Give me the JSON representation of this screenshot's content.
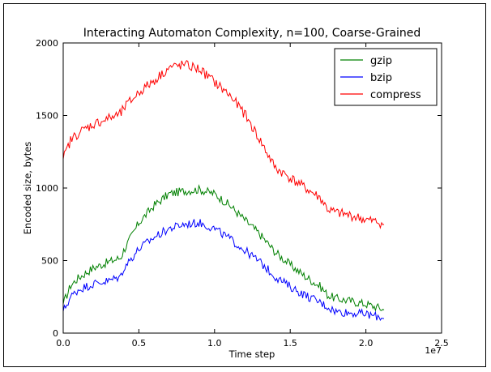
{
  "chart_data": {
    "type": "line",
    "title": "Interacting Automaton Complexity, n=100, Coarse-Grained",
    "xlabel": "Time step",
    "ylabel": "Encoded size, bytes",
    "x_offset_label": "1e7",
    "xlim": [
      0.0,
      2.5
    ],
    "ylim": [
      0,
      2000
    ],
    "x_ticks": [
      "0.0",
      "0.5",
      "1.0",
      "1.5",
      "2.0",
      "2.5"
    ],
    "y_ticks": [
      "0",
      "500",
      "1000",
      "1500",
      "2000"
    ],
    "grid": false,
    "legend_position": "top-right",
    "x": [
      0.0,
      0.05,
      0.1,
      0.2,
      0.3,
      0.38,
      0.4,
      0.5,
      0.6,
      0.7,
      0.8,
      0.9,
      1.0,
      1.1,
      1.2,
      1.3,
      1.4,
      1.5,
      1.6,
      1.7,
      1.75,
      1.8,
      1.9,
      2.0,
      2.1,
      2.12
    ],
    "series": [
      {
        "name": "gzip",
        "color": "#008000",
        "values": [
          200,
          330,
          380,
          450,
          490,
          520,
          570,
          760,
          880,
          960,
          980,
          990,
          960,
          880,
          780,
          680,
          560,
          470,
          390,
          320,
          260,
          240,
          220,
          200,
          170,
          160
        ]
      },
      {
        "name": "bzip",
        "color": "#0000ff",
        "values": [
          150,
          250,
          300,
          340,
          360,
          390,
          450,
          580,
          660,
          720,
          750,
          760,
          720,
          650,
          570,
          490,
          390,
          320,
          260,
          210,
          180,
          150,
          140,
          130,
          110,
          100
        ]
      },
      {
        "name": "compress",
        "color": "#ff0000",
        "values": [
          1200,
          1330,
          1380,
          1440,
          1480,
          1510,
          1550,
          1660,
          1740,
          1830,
          1850,
          1820,
          1730,
          1640,
          1510,
          1330,
          1140,
          1070,
          1000,
          930,
          850,
          830,
          810,
          780,
          760,
          750
        ]
      }
    ]
  }
}
